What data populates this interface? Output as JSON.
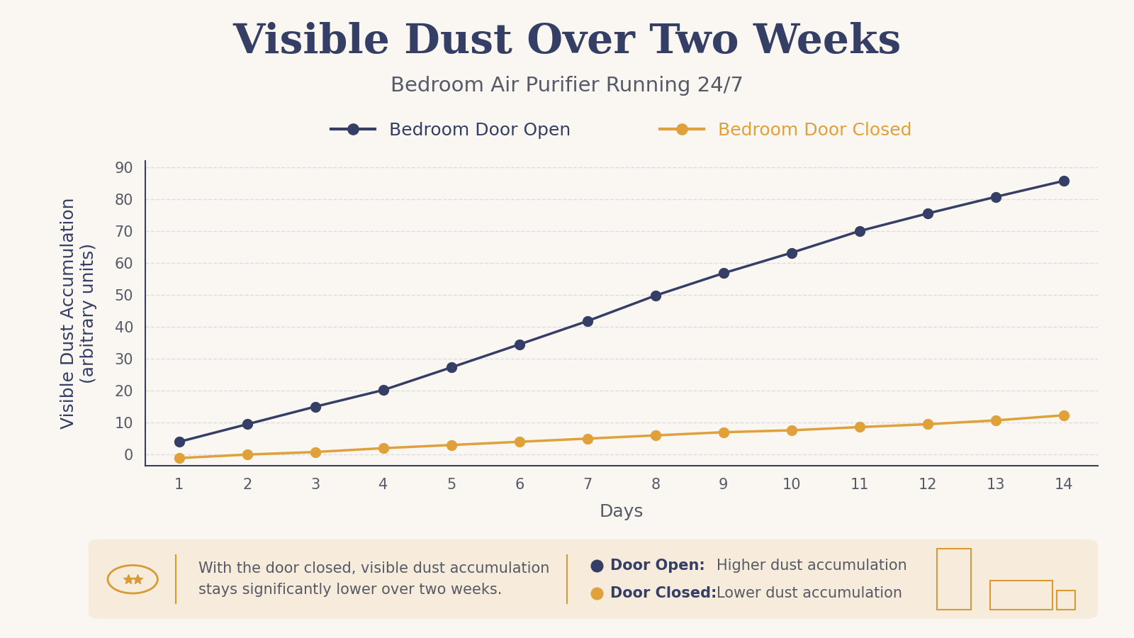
{
  "chart_data": {
    "type": "line",
    "title": "Visible Dust Over Two Weeks",
    "subtitle": "Bedroom Air Purifier Running 24/7",
    "x_label": "Days",
    "y_label": "Visible Dust Accumulation\n(arbitrary units)",
    "x": [
      1,
      2,
      3,
      4,
      5,
      6,
      7,
      8,
      9,
      10,
      11,
      12,
      13,
      14
    ],
    "series": [
      {
        "name": "Bedroom Door Open",
        "color": "#353f66",
        "marker": "o",
        "line_style": "solid",
        "values": [
          4,
          9.5,
          15,
          20.2,
          27.3,
          34.5,
          41.8,
          49.8,
          56.8,
          63.2,
          70,
          75.5,
          80.7,
          85.7
        ]
      },
      {
        "name": "Bedroom Door Closed",
        "color": "#e0a03a",
        "marker": "o",
        "line_style": "solid",
        "values": [
          -1.1,
          0,
          0.8,
          2,
          3,
          4,
          5,
          6,
          7,
          7.6,
          8.6,
          9.5,
          10.7,
          12.3
        ]
      }
    ],
    "xlim": [
      0.5,
      14.5
    ],
    "xticks": [
      1,
      2,
      3,
      4,
      5,
      6,
      7,
      8,
      9,
      10,
      11,
      12,
      13,
      14
    ],
    "ylim": [
      -3.5,
      92
    ],
    "yticks": [
      0,
      10,
      20,
      30,
      40,
      50,
      60,
      70,
      80,
      90
    ],
    "grid": true,
    "legend": "top",
    "footer": {
      "text": "With the door closed, visible dust accumulation\nstays significantly lower over two weeks.",
      "items": [
        {
          "label": "Door Open:",
          "text": "Higher dust accumulation"
        },
        {
          "label": "Door Closed:",
          "text": "Lower dust accumulation"
        }
      ]
    }
  }
}
